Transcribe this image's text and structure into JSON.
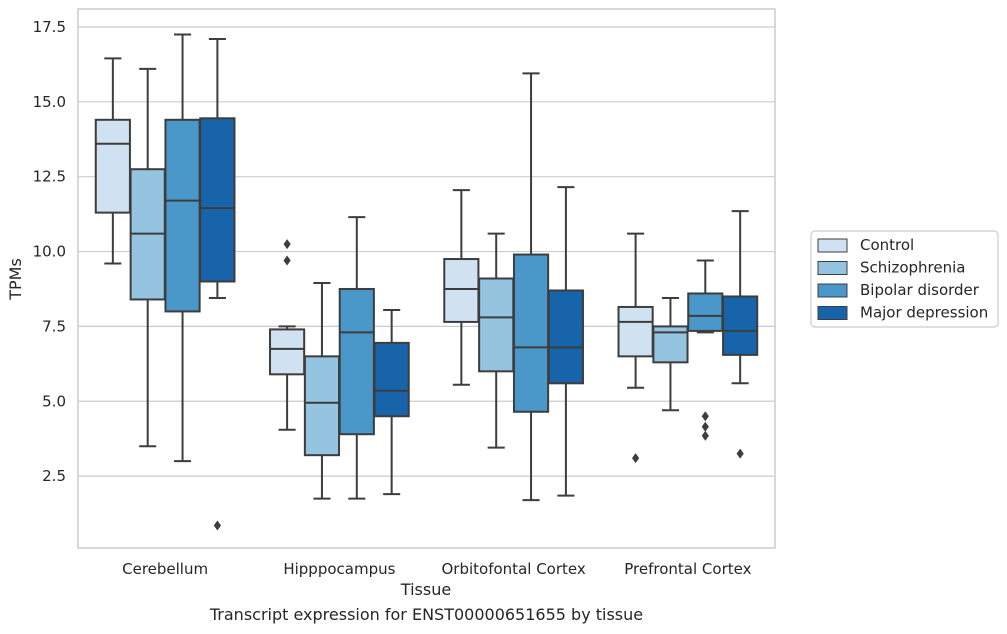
{
  "chart_data": {
    "type": "box",
    "xlabel": "Tissue",
    "ylabel": "TPMs",
    "ylim": [
      0.1,
      18.1
    ],
    "yticks": [
      2.5,
      5.0,
      7.5,
      10.0,
      12.5,
      15.0,
      17.5
    ],
    "ytick_labels": [
      "2.5",
      "5.0",
      "7.5",
      "10.0",
      "12.5",
      "15.0",
      "17.5"
    ],
    "grid": "horizontal",
    "legend_position": "right",
    "categories": [
      "Cerebellum",
      "Hipppocampus",
      "Orbitofontal Cortex",
      "Prefrontal Cortex"
    ],
    "series": [
      {
        "name": "Control",
        "color": "#d0e1f2",
        "boxes": [
          {
            "whislo": 9.6,
            "q1": 11.3,
            "med": 13.6,
            "q3": 14.4,
            "whishi": 16.45,
            "fliers": []
          },
          {
            "whislo": 4.05,
            "q1": 5.9,
            "med": 6.75,
            "q3": 7.4,
            "whishi": 7.5,
            "fliers": [
              9.7,
              10.25
            ]
          },
          {
            "whislo": 5.55,
            "q1": 7.65,
            "med": 8.75,
            "q3": 9.75,
            "whishi": 12.05,
            "fliers": []
          },
          {
            "whislo": 5.45,
            "q1": 6.5,
            "med": 7.65,
            "q3": 8.15,
            "whishi": 10.6,
            "fliers": [
              3.1
            ]
          }
        ]
      },
      {
        "name": "Schizophrenia",
        "color": "#94c4df",
        "boxes": [
          {
            "whislo": 3.5,
            "q1": 8.4,
            "med": 10.6,
            "q3": 12.75,
            "whishi": 16.1,
            "fliers": []
          },
          {
            "whislo": 1.75,
            "q1": 3.2,
            "med": 4.95,
            "q3": 6.5,
            "whishi": 8.95,
            "fliers": []
          },
          {
            "whislo": 3.45,
            "q1": 6.0,
            "med": 7.8,
            "q3": 9.1,
            "whishi": 10.6,
            "fliers": []
          },
          {
            "whislo": 4.7,
            "q1": 6.3,
            "med": 7.3,
            "q3": 7.5,
            "whishi": 8.45,
            "fliers": []
          }
        ]
      },
      {
        "name": "Bipolar disorder",
        "color": "#4a98c9",
        "boxes": [
          {
            "whislo": 3.0,
            "q1": 8.0,
            "med": 11.7,
            "q3": 14.4,
            "whishi": 17.25,
            "fliers": []
          },
          {
            "whislo": 1.75,
            "q1": 3.9,
            "med": 7.3,
            "q3": 8.75,
            "whishi": 11.15,
            "fliers": []
          },
          {
            "whislo": 1.7,
            "q1": 4.65,
            "med": 6.8,
            "q3": 9.9,
            "whishi": 15.95,
            "fliers": []
          },
          {
            "whislo": 7.3,
            "q1": 7.35,
            "med": 7.85,
            "q3": 8.6,
            "whishi": 9.7,
            "fliers": [
              3.85,
              4.15,
              4.5
            ]
          }
        ]
      },
      {
        "name": "Major depression",
        "color": "#1764ab",
        "boxes": [
          {
            "whislo": 8.45,
            "q1": 9.0,
            "med": 11.45,
            "q3": 14.45,
            "whishi": 17.1,
            "fliers": [
              0.85
            ]
          },
          {
            "whislo": 1.9,
            "q1": 4.5,
            "med": 5.35,
            "q3": 6.95,
            "whishi": 8.05,
            "fliers": []
          },
          {
            "whislo": 1.85,
            "q1": 5.6,
            "med": 6.8,
            "q3": 8.7,
            "whishi": 12.15,
            "fliers": []
          },
          {
            "whislo": 5.6,
            "q1": 6.55,
            "med": 7.35,
            "q3": 8.5,
            "whishi": 11.35,
            "fliers": [
              3.25
            ]
          }
        ]
      }
    ]
  },
  "caption": "Transcript expression for ENST00000651655 by tissue",
  "colors": {
    "edge": "#3d3d3d",
    "grid": "#cccccc",
    "frame": "#cccccc"
  }
}
